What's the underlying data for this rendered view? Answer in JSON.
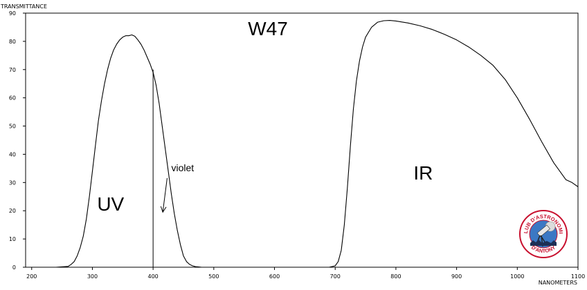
{
  "chart_data": {
    "type": "line",
    "title": "W47",
    "xlabel": "NANOMETERS",
    "ylabel": "TRANSMITTANCE",
    "xlim": [
      190,
      1100
    ],
    "ylim": [
      0,
      90
    ],
    "x_ticks": [
      200,
      300,
      400,
      500,
      600,
      700,
      800,
      900,
      1000,
      1100
    ],
    "y_ticks": [
      0,
      10,
      20,
      30,
      40,
      50,
      60,
      70,
      80,
      90
    ],
    "grid": false,
    "series": [
      {
        "x": [
          190,
          240,
          260,
          265,
          270,
          275,
          280,
          285,
          290,
          295,
          300,
          305,
          310,
          315,
          320,
          325,
          330,
          335,
          340,
          345,
          350,
          355,
          360,
          365,
          370,
          375,
          380,
          385,
          390,
          395,
          400,
          405,
          410,
          415,
          420,
          425,
          430,
          435,
          440,
          445,
          450,
          455,
          460,
          465,
          470,
          475,
          480,
          490,
          500,
          550,
          600,
          650,
          690,
          700,
          705,
          710,
          715,
          720,
          725,
          730,
          735,
          740,
          745,
          750,
          760,
          770,
          780,
          790,
          800,
          820,
          840,
          860,
          880,
          900,
          920,
          940,
          960,
          980,
          1000,
          1020,
          1040,
          1060,
          1080,
          1090,
          1100
        ],
        "values": [
          0,
          0,
          0.3,
          1,
          2,
          4,
          7,
          11,
          17,
          25,
          34,
          43,
          52,
          59,
          65,
          70,
          74,
          77,
          79,
          80.5,
          81.5,
          82,
          82,
          82.3,
          81.8,
          80.5,
          79,
          77,
          74.5,
          72,
          69,
          64.5,
          58,
          50,
          42,
          34,
          26,
          19,
          13,
          8,
          4,
          2,
          1,
          0.5,
          0.2,
          0.1,
          0,
          0,
          0,
          0,
          0,
          0,
          0,
          0.5,
          2,
          6,
          15,
          28,
          43,
          56,
          66,
          73,
          78,
          81.5,
          85,
          86.8,
          87.3,
          87.4,
          87.2,
          86.5,
          85.5,
          84.2,
          82.5,
          80.5,
          78,
          75,
          71.5,
          66.5,
          60,
          52.5,
          44.5,
          37,
          31,
          30,
          28.5
        ]
      }
    ],
    "annotations": [
      {
        "text": "UV",
        "x": 330,
        "y": 20
      },
      {
        "text": "violet",
        "x": 430,
        "y": 34
      },
      {
        "text": "IR",
        "x": 845,
        "y": 31
      }
    ],
    "marker_line_x": 400,
    "marker_line_top": 70
  },
  "logo": {
    "top_text": "CLUB D'ASTRONOMIE",
    "bottom_text": "D'ANTONY",
    "ring_color": "#c8102e",
    "sky_color": "#3b78c4"
  },
  "colors": {
    "line": "#000000",
    "axis": "#000000"
  }
}
